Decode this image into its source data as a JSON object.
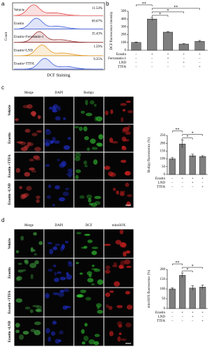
{
  "panel_labels": [
    "a",
    "b",
    "c",
    "d"
  ],
  "flow": {
    "ylabel": "Count",
    "xlabel": "DCF Staining",
    "samples": [
      "Vehicle",
      "Erastin",
      "Erastin+Ferrostatin-1",
      "Erastin+LND",
      "Erastin+TTFA"
    ],
    "percentages": [
      "11.54%",
      "69.67%",
      "35.43%",
      "1.59%",
      "9.35%"
    ],
    "colors": [
      "#e03030",
      "#2a4bd7",
      "#8b1a1a",
      "#e08a00",
      "#2a4bd7"
    ]
  },
  "images": [
    {
      "columns": [
        "Merge",
        "DAPI",
        "Bodipy",
        null
      ],
      "rows": [
        "Vehicle",
        "Erastin",
        "Erastin +TTFA",
        "Erastin +LND"
      ]
    },
    {
      "columns": [
        "Merge",
        "DAPI",
        "DCF",
        "mitoSOX"
      ],
      "rows": [
        "Vehicle",
        "Erastin",
        "Erastin +TTFA",
        "Erastin +LND"
      ]
    }
  ],
  "chart_data": [
    {
      "type": "bar",
      "ylabel": "DCF fluorescence intensity",
      "categories": [
        null,
        null,
        null,
        null,
        null
      ],
      "values": [
        100,
        400,
        232,
        80,
        115
      ],
      "errors": [
        5,
        20,
        8,
        5,
        10
      ],
      "color": "#7f7f7f",
      "ylim": [
        0,
        500
      ],
      "yticks": [
        0,
        100,
        200,
        300,
        400,
        500
      ],
      "treatments": [
        {
          "name": "Erastin",
          "signs": [
            "−",
            "+",
            "+",
            "+",
            "+"
          ]
        },
        {
          "name": "Ferrostatin-1",
          "signs": [
            "−",
            "−",
            "+",
            "−",
            "−"
          ]
        },
        {
          "name": "LND",
          "signs": [
            "−",
            "−",
            "−",
            "+",
            "−"
          ]
        },
        {
          "name": "TTFA",
          "signs": [
            "−",
            "−",
            "−",
            "−",
            "+"
          ]
        }
      ],
      "significance": [
        "*",
        "*",
        "**",
        "**"
      ]
    },
    {
      "type": "bar",
      "ylabel": "Bodipy fluorescence (%)",
      "categories": [
        null,
        null,
        null,
        null
      ],
      "values": [
        100,
        195,
        120,
        115
      ],
      "errors": [
        8,
        25,
        10,
        6
      ],
      "color": "#7f7f7f",
      "ylim": [
        0,
        250
      ],
      "yticks": [
        0,
        50,
        100,
        150,
        200,
        250
      ],
      "treatments": [
        {
          "name": "Erastin",
          "signs": [
            "−",
            "+",
            "+",
            "+"
          ]
        },
        {
          "name": "LND",
          "signs": [
            "−",
            "−",
            "+",
            "−"
          ]
        },
        {
          "name": "TTFA",
          "signs": [
            "−",
            "−",
            "−",
            "+"
          ]
        }
      ],
      "significance": [
        "*",
        "*",
        "**"
      ]
    },
    {
      "type": "bar",
      "ylabel": "mitoSOX fluorescence (%)",
      "categories": [
        null,
        null,
        null,
        null
      ],
      "values": [
        100,
        170,
        105,
        110
      ],
      "errors": [
        6,
        12,
        12,
        10
      ],
      "color": "#7f7f7f",
      "ylim": [
        0,
        200
      ],
      "yticks": [
        0,
        50,
        100,
        150,
        200
      ],
      "treatments": [
        {
          "name": "Erastin",
          "signs": [
            "−",
            "+",
            "+",
            "+"
          ]
        },
        {
          "name": "LND",
          "signs": [
            "−",
            "−",
            "+",
            "−"
          ]
        },
        {
          "name": "TTFA",
          "signs": [
            "−",
            "−",
            "−",
            "+"
          ]
        }
      ],
      "significance": [
        "*",
        "*",
        "**"
      ]
    }
  ]
}
